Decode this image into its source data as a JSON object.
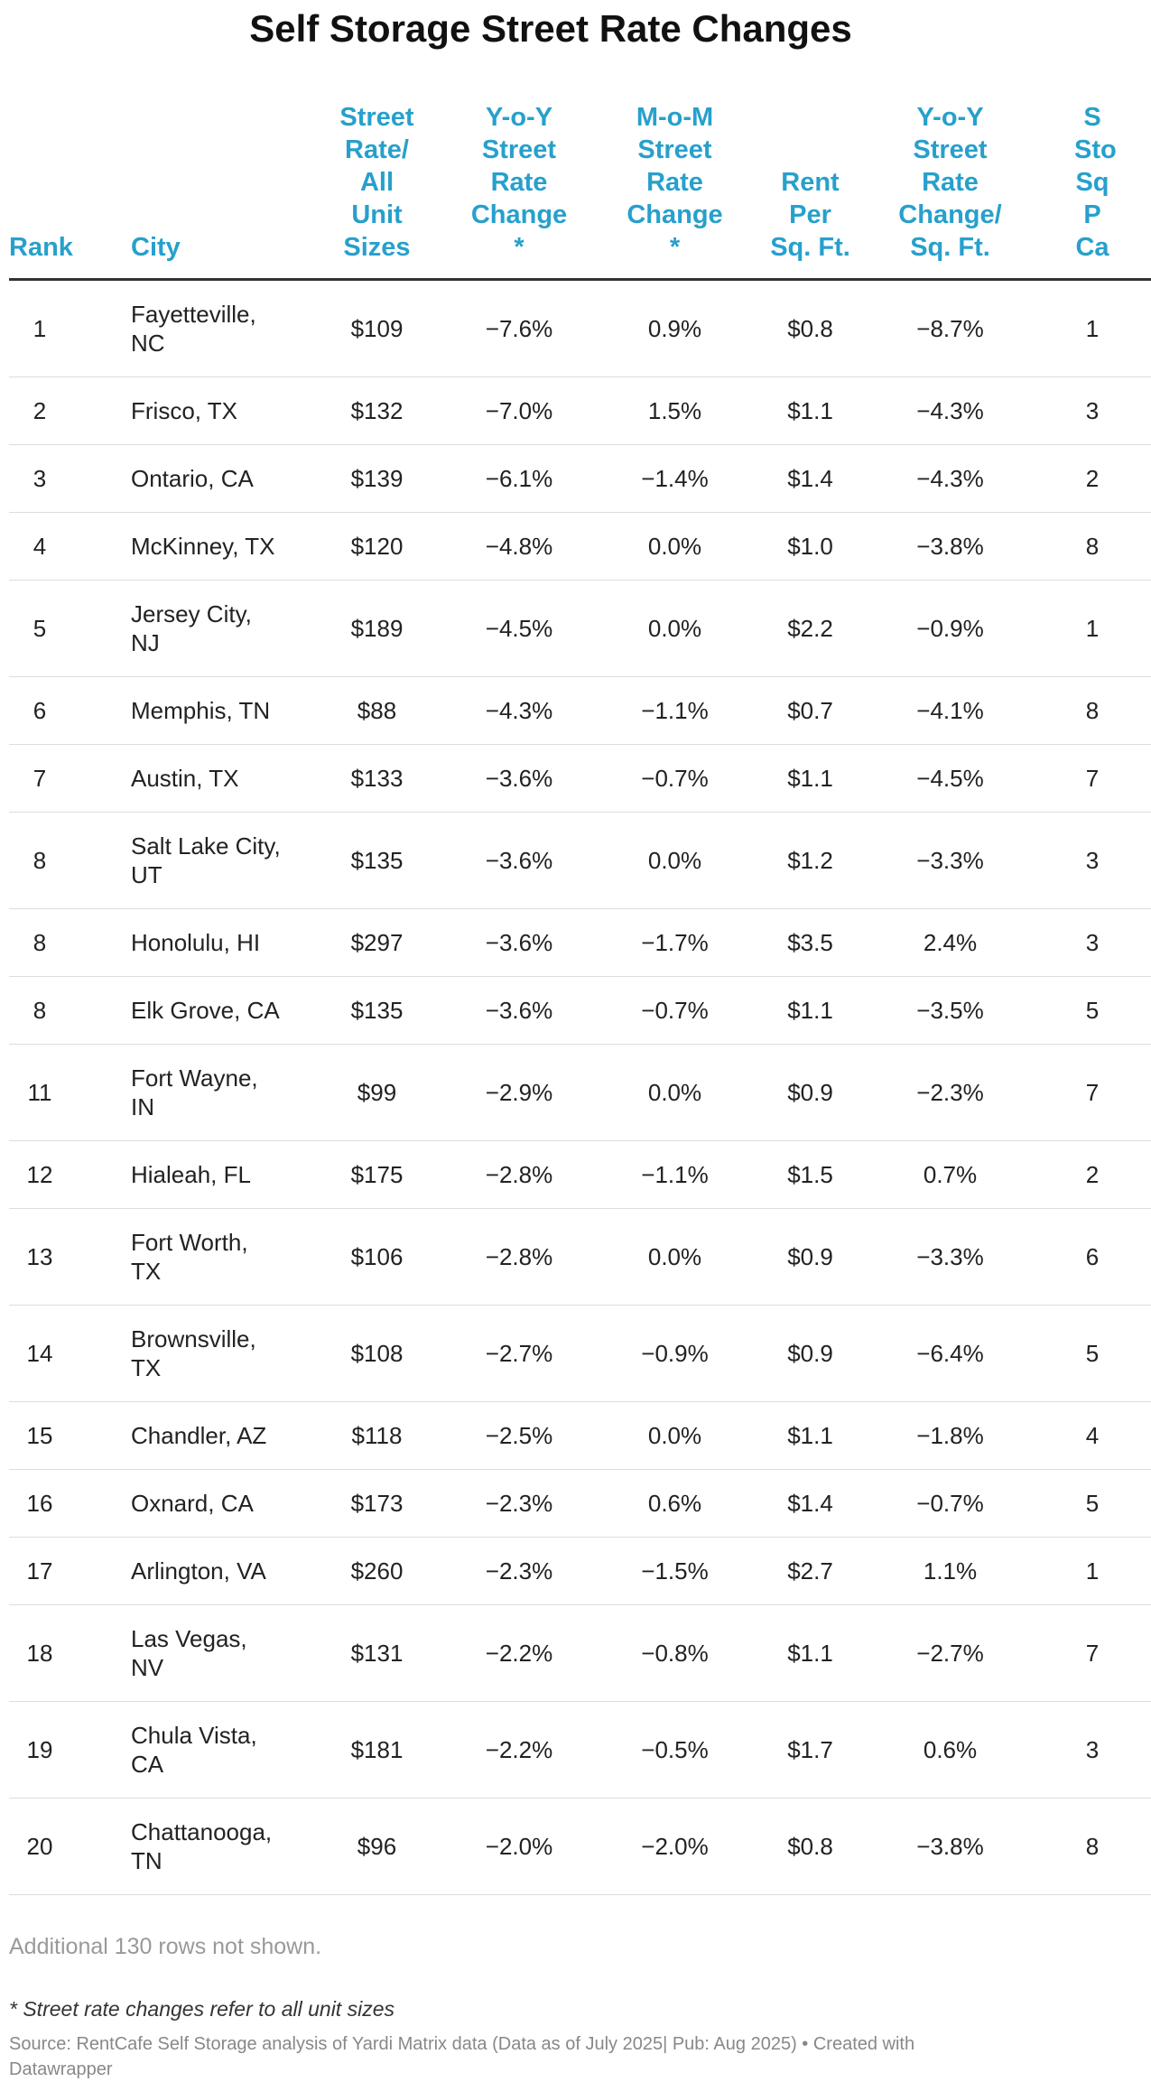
{
  "title": "Self Storage Street Rate Changes",
  "table": {
    "headers": [
      "Rank",
      "City",
      "Street Rate/ All Unit Sizes",
      "Y-o-Y Street Rate Change *",
      "M-o-M Street Rate Change *",
      "Rent Per Sq. Ft.",
      "Y-o-Y Street Rate Change/ Sq. Ft.",
      "S Sto Sq P Ca"
    ],
    "rows": [
      [
        "1",
        "Fayetteville, NC",
        "$109",
        "−7.6%",
        "0.9%",
        "$0.8",
        "−8.7%",
        "1"
      ],
      [
        "2",
        "Frisco, TX",
        "$132",
        "−7.0%",
        "1.5%",
        "$1.1",
        "−4.3%",
        "3"
      ],
      [
        "3",
        "Ontario, CA",
        "$139",
        "−6.1%",
        "−1.4%",
        "$1.4",
        "−4.3%",
        "2"
      ],
      [
        "4",
        "McKinney, TX",
        "$120",
        "−4.8%",
        "0.0%",
        "$1.0",
        "−3.8%",
        "8"
      ],
      [
        "5",
        "Jersey City, NJ",
        "$189",
        "−4.5%",
        "0.0%",
        "$2.2",
        "−0.9%",
        "1"
      ],
      [
        "6",
        "Memphis, TN",
        "$88",
        "−4.3%",
        "−1.1%",
        "$0.7",
        "−4.1%",
        "8"
      ],
      [
        "7",
        "Austin, TX",
        "$133",
        "−3.6%",
        "−0.7%",
        "$1.1",
        "−4.5%",
        "7"
      ],
      [
        "8",
        "Salt Lake City, UT",
        "$135",
        "−3.6%",
        "0.0%",
        "$1.2",
        "−3.3%",
        "3"
      ],
      [
        "8",
        "Honolulu, HI",
        "$297",
        "−3.6%",
        "−1.7%",
        "$3.5",
        "2.4%",
        "3"
      ],
      [
        "8",
        "Elk Grove, CA",
        "$135",
        "−3.6%",
        "−0.7%",
        "$1.1",
        "−3.5%",
        "5"
      ],
      [
        "11",
        "Fort Wayne, IN",
        "$99",
        "−2.9%",
        "0.0%",
        "$0.9",
        "−2.3%",
        "7"
      ],
      [
        "12",
        "Hialeah, FL",
        "$175",
        "−2.8%",
        "−1.1%",
        "$1.5",
        "0.7%",
        "2"
      ],
      [
        "13",
        "Fort Worth, TX",
        "$106",
        "−2.8%",
        "0.0%",
        "$0.9",
        "−3.3%",
        "6"
      ],
      [
        "14",
        "Brownsville, TX",
        "$108",
        "−2.7%",
        "−0.9%",
        "$0.9",
        "−6.4%",
        "5"
      ],
      [
        "15",
        "Chandler, AZ",
        "$118",
        "−2.5%",
        "0.0%",
        "$1.1",
        "−1.8%",
        "4"
      ],
      [
        "16",
        "Oxnard, CA",
        "$173",
        "−2.3%",
        "0.6%",
        "$1.4",
        "−0.7%",
        "5"
      ],
      [
        "17",
        "Arlington, VA",
        "$260",
        "−2.3%",
        "−1.5%",
        "$2.7",
        "1.1%",
        "1"
      ],
      [
        "18",
        "Las Vegas, NV",
        "$131",
        "−2.2%",
        "−0.8%",
        "$1.1",
        "−2.7%",
        "7"
      ],
      [
        "19",
        "Chula Vista, CA",
        "$181",
        "−2.2%",
        "−0.5%",
        "$1.7",
        "0.6%",
        "3"
      ],
      [
        "20",
        "Chattanooga, TN",
        "$96",
        "−2.0%",
        "−2.0%",
        "$0.8",
        "−3.8%",
        "8"
      ]
    ]
  },
  "footer": {
    "more": "Additional 130 rows not shown.",
    "note": "* Street rate changes refer to all unit sizes",
    "source": "Source: RentCafe Self Storage analysis of Yardi Matrix data (Data as of July 2025| Pub: Aug 2025) • Created with Datawrapper"
  }
}
